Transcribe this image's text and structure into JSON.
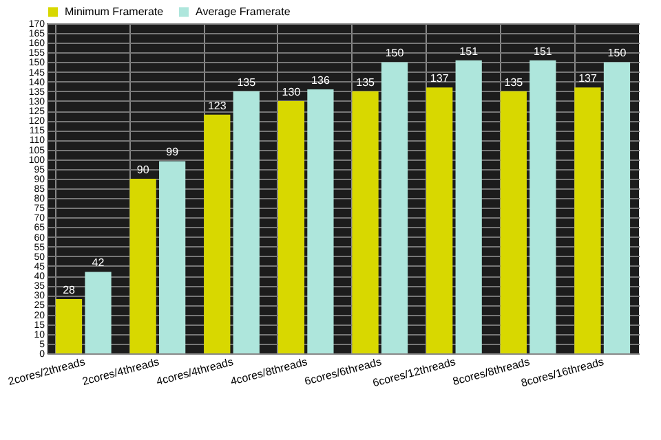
{
  "chart_data": {
    "type": "bar",
    "categories": [
      "2cores/2threads",
      "2cores/4threads",
      "4cores/4threads",
      "4cores/8threads",
      "6cores/6threads",
      "6cores/12threads",
      "8cores/8threads",
      "8cores/16threads"
    ],
    "series": [
      {
        "name": "Minimum Framerate",
        "color": "#d8d800",
        "values": [
          28,
          90,
          123,
          130,
          135,
          137,
          135,
          137
        ]
      },
      {
        "name": "Average Framerate",
        "color": "#aee6dc",
        "values": [
          42,
          99,
          135,
          136,
          150,
          151,
          151,
          150
        ]
      }
    ],
    "ylim": [
      0,
      170
    ],
    "yticks": [
      0,
      5,
      10,
      15,
      20,
      25,
      30,
      35,
      40,
      45,
      50,
      55,
      60,
      65,
      70,
      75,
      80,
      85,
      90,
      95,
      100,
      105,
      110,
      115,
      120,
      125,
      130,
      135,
      140,
      145,
      150,
      155,
      160,
      165,
      170
    ],
    "grid": true,
    "legend": "top left",
    "data_labels": true
  }
}
